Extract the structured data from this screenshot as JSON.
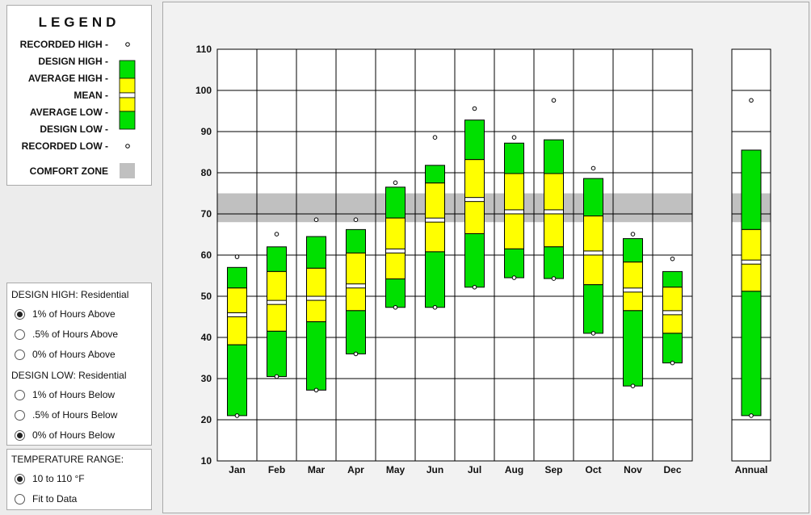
{
  "legend": {
    "title": "LEGEND",
    "recorded_high": "RECORDED HIGH -",
    "design_high": "DESIGN HIGH -",
    "average_high": "AVERAGE HIGH -",
    "mean": "MEAN -",
    "average_low": "AVERAGE LOW -",
    "design_low": "DESIGN LOW -",
    "recorded_low": "RECORDED LOW -",
    "comfort_zone": "COMFORT ZONE"
  },
  "design_high": {
    "label": "DESIGN HIGH:  Residential",
    "options": [
      "1% of Hours Above",
      ".5% of Hours Above",
      "0% of Hours Above"
    ],
    "selected": 0
  },
  "design_low": {
    "label": "DESIGN LOW:  Residential",
    "options": [
      "1% of Hours Below",
      ".5% of Hours Below",
      "0% of Hours Below"
    ],
    "selected": 2
  },
  "temp_range": {
    "label": "TEMPERATURE RANGE:",
    "options": [
      "10 to 110 °F",
      "Fit to Data"
    ],
    "selected": 0
  },
  "colors": {
    "green": "#00e000",
    "yellow": "#ffff00",
    "comfort": "#c0c0c0",
    "grid": "#000000"
  },
  "chart_data": {
    "type": "bar",
    "ylim": [
      10,
      110
    ],
    "yticks": [
      10,
      20,
      30,
      40,
      50,
      60,
      70,
      80,
      90,
      100,
      110
    ],
    "comfort_zone": [
      68,
      75
    ],
    "categories": [
      "Jan",
      "Feb",
      "Mar",
      "Apr",
      "May",
      "Jun",
      "Jul",
      "Aug",
      "Sep",
      "Oct",
      "Nov",
      "Dec"
    ],
    "annual_label": "Annual",
    "series": [
      {
        "name": "RECORDED HIGH",
        "values": [
          59,
          64.5,
          68,
          68,
          77,
          88,
          95,
          88,
          97,
          80.5,
          64.5,
          58.5
        ]
      },
      {
        "name": "DESIGN HIGH",
        "values": [
          57,
          62,
          64.5,
          66.2,
          76.5,
          81.8,
          92.8,
          87.2,
          88,
          78.6,
          64,
          56
        ]
      },
      {
        "name": "AVERAGE HIGH",
        "values": [
          52,
          56,
          56.8,
          60.5,
          69,
          77.5,
          83.2,
          79.8,
          79.8,
          69.5,
          58.3,
          52.2
        ]
      },
      {
        "name": "MEAN",
        "values": [
          45.5,
          48.5,
          49.5,
          52.5,
          61,
          68.5,
          73.5,
          70.5,
          70.5,
          60.5,
          51.5,
          46
        ]
      },
      {
        "name": "AVERAGE LOW",
        "values": [
          38.2,
          41.5,
          43.8,
          46.5,
          54.2,
          60.8,
          65.2,
          61.5,
          62,
          52.8,
          46.5,
          41
        ]
      },
      {
        "name": "DESIGN LOW",
        "values": [
          21,
          30.5,
          27.2,
          36,
          47.3,
          47.3,
          52.2,
          54.5,
          54.3,
          41,
          28.2,
          33.8
        ]
      },
      {
        "name": "RECORDED LOW",
        "values": [
          21,
          30.5,
          27.2,
          36,
          47.3,
          47.3,
          52.2,
          54.5,
          54.3,
          41,
          28.2,
          33.8
        ]
      }
    ],
    "annual": {
      "recorded_high": 97,
      "design_high": 85.5,
      "average_high": 66.2,
      "mean": 58.3,
      "average_low": 51.2,
      "design_low": 21,
      "recorded_low": 21
    }
  }
}
